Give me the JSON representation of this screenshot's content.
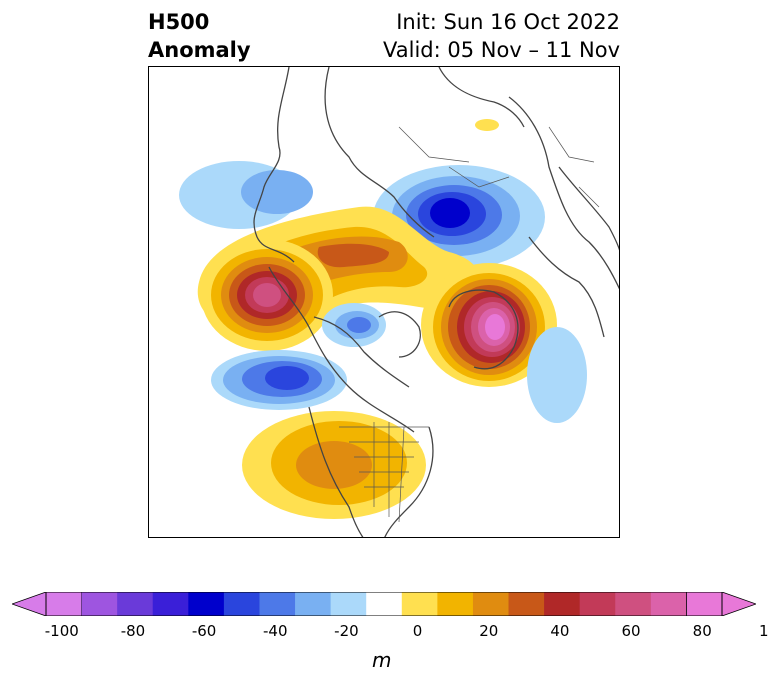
{
  "title": {
    "left_line1": "H500",
    "left_line2": "Anomaly",
    "init": "Init: Sun 16 Oct 2022",
    "valid": "Valid: 05 Nov – 11 Nov"
  },
  "colorbar": {
    "unit": "m",
    "tick_labels": [
      "-100",
      "-80",
      "-60",
      "-40",
      "-20",
      "0",
      "20",
      "40",
      "60",
      "80",
      "100"
    ],
    "colors": [
      "#d77ce9",
      "#9e55e0",
      "#6a3ad9",
      "#3a1fd8",
      "#0000cc",
      "#2a45dd",
      "#4d79e8",
      "#79b0f2",
      "#abd9fa",
      "#ffffff",
      "#ffe050",
      "#f2b400",
      "#e08c10",
      "#c85818",
      "#b02828",
      "#c23a58",
      "#cf5080",
      "#db62aa",
      "#e878d8"
    ]
  },
  "map": {
    "projection": "polar stereographic, North Pole centered",
    "features": [
      "coastlines",
      "country borders",
      "US state borders"
    ],
    "anomalies": [
      {
        "region": "Western Siberia / Kazakhstan",
        "sign": "negative",
        "peak": "-60"
      },
      {
        "region": "Alaska / Bering Sea",
        "sign": "positive",
        "peak": "80"
      },
      {
        "region": "Greenland / North Atlantic",
        "sign": "positive",
        "peak": "100"
      },
      {
        "region": "Gulf of Alaska / NE Pacific",
        "sign": "negative",
        "peak": "-50"
      },
      {
        "region": "Central United States",
        "sign": "positive",
        "peak": "40"
      },
      {
        "region": "North Atlantic (south of Greenland)",
        "sign": "negative",
        "peak": "-20"
      },
      {
        "region": "Arctic Ocean",
        "sign": "positive",
        "peak": "40"
      }
    ]
  }
}
